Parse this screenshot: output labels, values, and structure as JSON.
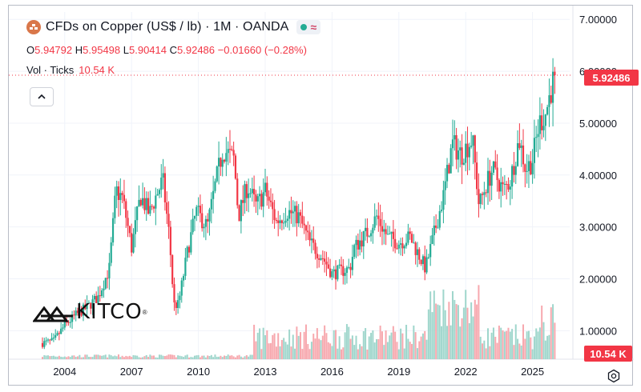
{
  "header": {
    "title": "CFDs on Copper (US$ / lb) · 1M · OANDA"
  },
  "ohlc": {
    "o_label": "O",
    "o_value": "5.94792",
    "h_label": "H",
    "h_value": "5.95498",
    "l_label": "L",
    "l_value": "5.90414",
    "c_label": "C",
    "c_value": "5.92486",
    "change": "−0.01660 (−0.28%)"
  },
  "volume": {
    "label": "Vol · Ticks",
    "value": "10.54 K"
  },
  "price_tag": "5.92486",
  "volume_tag": "10.54 K",
  "logo": {
    "text": "KITCO",
    "reg": "®"
  },
  "icons": {
    "symbol": "copper-symbol-icon",
    "market_status": "market-open-dot-icon",
    "data_wave": "data-delay-wave-icon",
    "collapse": "chevron-up-icon",
    "settings": "settings-gear-icon"
  },
  "colors": {
    "up": "#22ab94",
    "down": "#f23645",
    "up_volume": "#9fd6cc",
    "down_volume": "#f7a8ae",
    "last_price_line": "#f23645"
  },
  "chart_data": {
    "type": "candlestick",
    "interval": "1M",
    "yticks": [
      "1.00000",
      "2.00000",
      "3.00000",
      "4.00000",
      "5.00000",
      "6.00000",
      "7.00000"
    ],
    "xticks": [
      "2004",
      "2007",
      "2010",
      "2013",
      "2016",
      "2019",
      "2022",
      "2025"
    ],
    "ylim": [
      0.45,
      7.05
    ],
    "last_price": 5.92486,
    "close_anchors": [
      [
        2003.0,
        0.76
      ],
      [
        2003.5,
        0.8
      ],
      [
        2004.0,
        1.1
      ],
      [
        2004.5,
        1.3
      ],
      [
        2005.0,
        1.45
      ],
      [
        2005.5,
        1.65
      ],
      [
        2006.0,
        2.2
      ],
      [
        2006.3,
        3.7
      ],
      [
        2006.6,
        3.55
      ],
      [
        2007.0,
        2.6
      ],
      [
        2007.4,
        3.6
      ],
      [
        2007.8,
        3.25
      ],
      [
        2008.1,
        3.6
      ],
      [
        2008.4,
        3.9
      ],
      [
        2008.7,
        2.8
      ],
      [
        2008.9,
        1.5
      ],
      [
        2009.1,
        1.5
      ],
      [
        2009.5,
        2.5
      ],
      [
        2009.9,
        3.3
      ],
      [
        2010.4,
        3.0
      ],
      [
        2010.8,
        3.9
      ],
      [
        2011.1,
        4.5
      ],
      [
        2011.6,
        4.3
      ],
      [
        2011.8,
        3.2
      ],
      [
        2012.2,
        3.8
      ],
      [
        2012.6,
        3.4
      ],
      [
        2013.0,
        3.7
      ],
      [
        2013.5,
        3.1
      ],
      [
        2014.0,
        3.3
      ],
      [
        2014.5,
        3.2
      ],
      [
        2015.0,
        2.7
      ],
      [
        2015.6,
        2.4
      ],
      [
        2016.0,
        2.1
      ],
      [
        2016.8,
        2.2
      ],
      [
        2017.0,
        2.6
      ],
      [
        2017.6,
        2.9
      ],
      [
        2018.0,
        3.2
      ],
      [
        2018.5,
        2.8
      ],
      [
        2019.0,
        2.7
      ],
      [
        2019.5,
        2.8
      ],
      [
        2020.2,
        2.2
      ],
      [
        2020.6,
        2.9
      ],
      [
        2021.0,
        3.6
      ],
      [
        2021.4,
        4.6
      ],
      [
        2021.8,
        4.4
      ],
      [
        2022.3,
        4.7
      ],
      [
        2022.6,
        3.4
      ],
      [
        2022.9,
        3.8
      ],
      [
        2023.2,
        4.1
      ],
      [
        2023.7,
        3.7
      ],
      [
        2024.0,
        3.9
      ],
      [
        2024.4,
        4.7
      ],
      [
        2024.7,
        4.1
      ],
      [
        2025.0,
        4.3
      ],
      [
        2025.3,
        5.0
      ],
      [
        2025.6,
        5.2
      ],
      [
        2025.8,
        5.6
      ],
      [
        2026.0,
        5.92
      ]
    ]
  }
}
